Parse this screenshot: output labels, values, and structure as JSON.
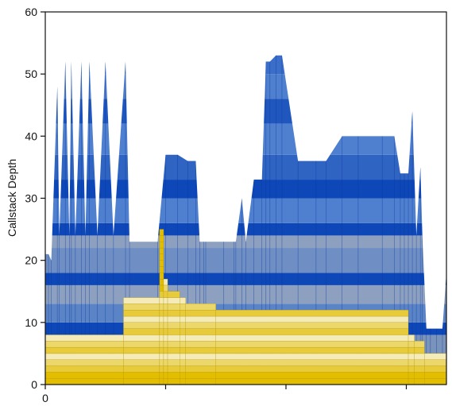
{
  "chart_data": {
    "type": "area",
    "title": "",
    "xlabel": "",
    "ylabel": "Callstack Depth",
    "ylim": [
      0,
      60
    ],
    "xlim": [
      0,
      1000
    ],
    "y_ticks": [
      0,
      10,
      20,
      30,
      40,
      50,
      60
    ],
    "x_tick_labels": [
      "0"
    ],
    "grid": false,
    "legend": "none",
    "colors": {
      "blue_dark": "#0d47b8",
      "blue_mid": "#4f7fcf",
      "blue_gray": "#8da0c0",
      "blue_light": "#c9d6ee",
      "yellow_dark": "#e3bd00",
      "yellow_mid": "#ecd76a",
      "yellow_light": "#f4ebb8"
    },
    "series": [
      {
        "name": "",
        "color_family": "blue",
        "x": [
          0,
          8,
          15,
          30,
          35,
          50,
          60,
          65,
          75,
          90,
          100,
          110,
          130,
          150,
          170,
          200,
          210,
          280,
          300,
          330,
          355,
          375,
          385,
          395,
          400,
          445,
          470,
          475,
          490,
          500,
          520,
          540,
          550,
          560,
          575,
          590,
          630,
          675,
          700,
          740,
          780,
          840,
          870,
          885,
          895,
          905,
          915,
          925,
          935,
          940,
          950,
          960,
          975,
          990,
          1000
        ],
        "values": [
          21,
          21,
          20,
          48,
          24,
          52,
          24,
          52,
          24,
          52,
          24,
          52,
          24,
          52,
          24,
          52,
          23,
          23,
          37,
          37,
          36,
          36,
          23,
          23,
          23,
          23,
          23,
          23,
          30,
          23,
          33,
          33,
          52,
          52,
          53,
          53,
          36,
          36,
          36,
          40,
          40,
          40,
          40,
          34,
          34,
          34,
          44,
          24,
          35,
          24,
          9,
          9,
          9,
          9,
          18
        ]
      },
      {
        "name": "",
        "color_family": "yellow",
        "x": [
          0,
          200,
          280,
          285,
          290,
          300,
          310,
          350,
          370,
          415,
          430,
          480,
          500,
          600,
          700,
          800,
          860,
          880,
          910,
          915,
          925,
          950,
          970,
          1000
        ],
        "values": [
          8,
          8,
          8,
          14,
          14,
          14,
          14,
          14,
          13,
          13,
          12,
          12,
          12,
          12,
          12,
          12,
          12,
          12,
          12,
          8,
          7,
          6,
          5,
          5
        ],
        "step_profile": [
          {
            "x0": 0,
            "x1": 195,
            "depth": 8
          },
          {
            "x0": 195,
            "x1": 285,
            "depth": 14
          },
          {
            "x0": 285,
            "x1": 295,
            "depth": 25
          },
          {
            "x0": 295,
            "x1": 305,
            "depth": 17
          },
          {
            "x0": 305,
            "x1": 335,
            "depth": 15
          },
          {
            "x0": 335,
            "x1": 350,
            "depth": 14
          },
          {
            "x0": 350,
            "x1": 425,
            "depth": 13
          },
          {
            "x0": 425,
            "x1": 905,
            "depth": 12
          },
          {
            "x0": 905,
            "x1": 920,
            "depth": 8
          },
          {
            "x0": 920,
            "x1": 945,
            "depth": 7
          },
          {
            "x0": 945,
            "x1": 1000,
            "depth": 5
          }
        ]
      }
    ]
  }
}
